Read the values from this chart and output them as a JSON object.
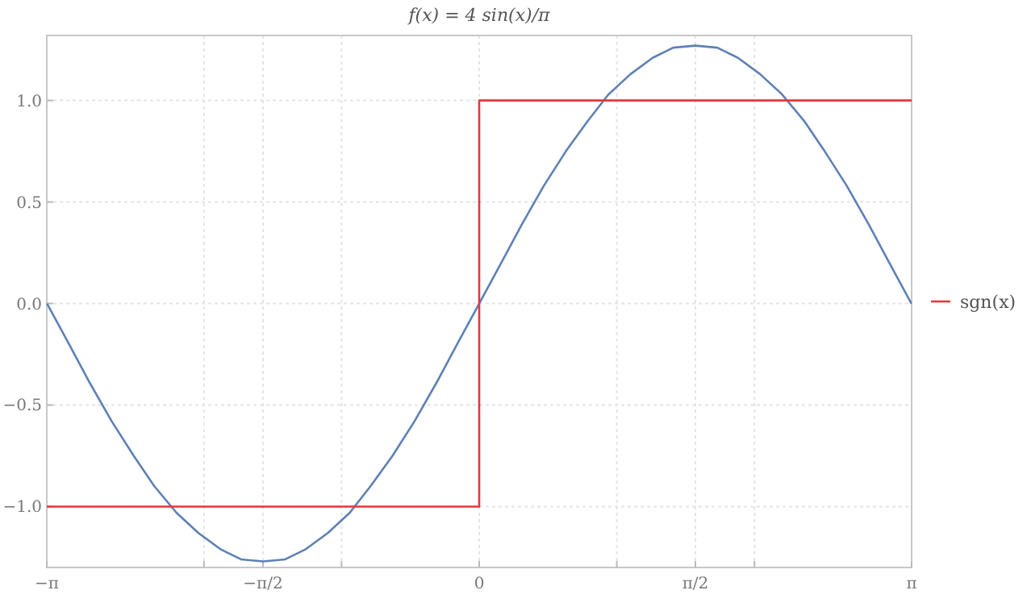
{
  "chart_data": {
    "type": "line",
    "title": "f(x) = 4 sin(x)/π",
    "xlim": [
      -3.14159,
      3.14159
    ],
    "ylim": [
      -1.3,
      1.32
    ],
    "xticks": [
      {
        "value": -3.14159,
        "label": "−π"
      },
      {
        "value": -2,
        "label": null
      },
      {
        "value": -1.5708,
        "label": "−π/2"
      },
      {
        "value": -1,
        "label": null
      },
      0,
      {
        "value": 1,
        "label": null
      },
      {
        "value": 1.5708,
        "label": "π/2"
      },
      {
        "value": 2,
        "label": null
      },
      {
        "value": 3.14159,
        "label": "π"
      }
    ],
    "yticks": [
      {
        "value": -1,
        "label": "−1.0"
      },
      {
        "value": -0.5,
        "label": "−0.5"
      },
      {
        "value": 0,
        "label": "0.0"
      },
      {
        "value": 0.5,
        "label": "0.5"
      },
      {
        "value": 1,
        "label": "1.0"
      }
    ],
    "grid": true,
    "legend": "right",
    "line_style": "solid",
    "marker": "none",
    "series": [
      {
        "color": "#5e81b5",
        "x": [
          -3.14,
          -2.98,
          -2.83,
          -2.67,
          -2.51,
          -2.36,
          -2.2,
          -2.04,
          -1.88,
          -1.73,
          -1.57,
          -1.41,
          -1.26,
          -1.1,
          -0.94,
          -0.79,
          -0.63,
          -0.47,
          -0.31,
          -0.16,
          0,
          0.16,
          0.31,
          0.47,
          0.63,
          0.79,
          0.94,
          1.1,
          1.26,
          1.41,
          1.57,
          1.73,
          1.88,
          2.04,
          2.2,
          2.36,
          2.51,
          2.67,
          2.83,
          2.98,
          3.14
        ],
        "values": [
          0,
          -0.2,
          -0.39,
          -0.58,
          -0.75,
          -0.9,
          -1.03,
          -1.13,
          -1.21,
          -1.26,
          -1.27,
          -1.26,
          -1.21,
          -1.13,
          -1.03,
          -0.9,
          -0.75,
          -0.58,
          -0.39,
          -0.2,
          0,
          0.2,
          0.39,
          0.58,
          0.75,
          0.9,
          1.03,
          1.13,
          1.21,
          1.26,
          1.27,
          1.26,
          1.21,
          1.13,
          1.03,
          0.9,
          0.75,
          0.58,
          0.39,
          0.2,
          0
        ]
      },
      {
        "type": "step",
        "name": "sgn(x)",
        "color": "#e5383b",
        "x": [
          -3.14159,
          0,
          3.14159
        ],
        "values": [
          -1,
          1,
          1
        ]
      }
    ]
  }
}
